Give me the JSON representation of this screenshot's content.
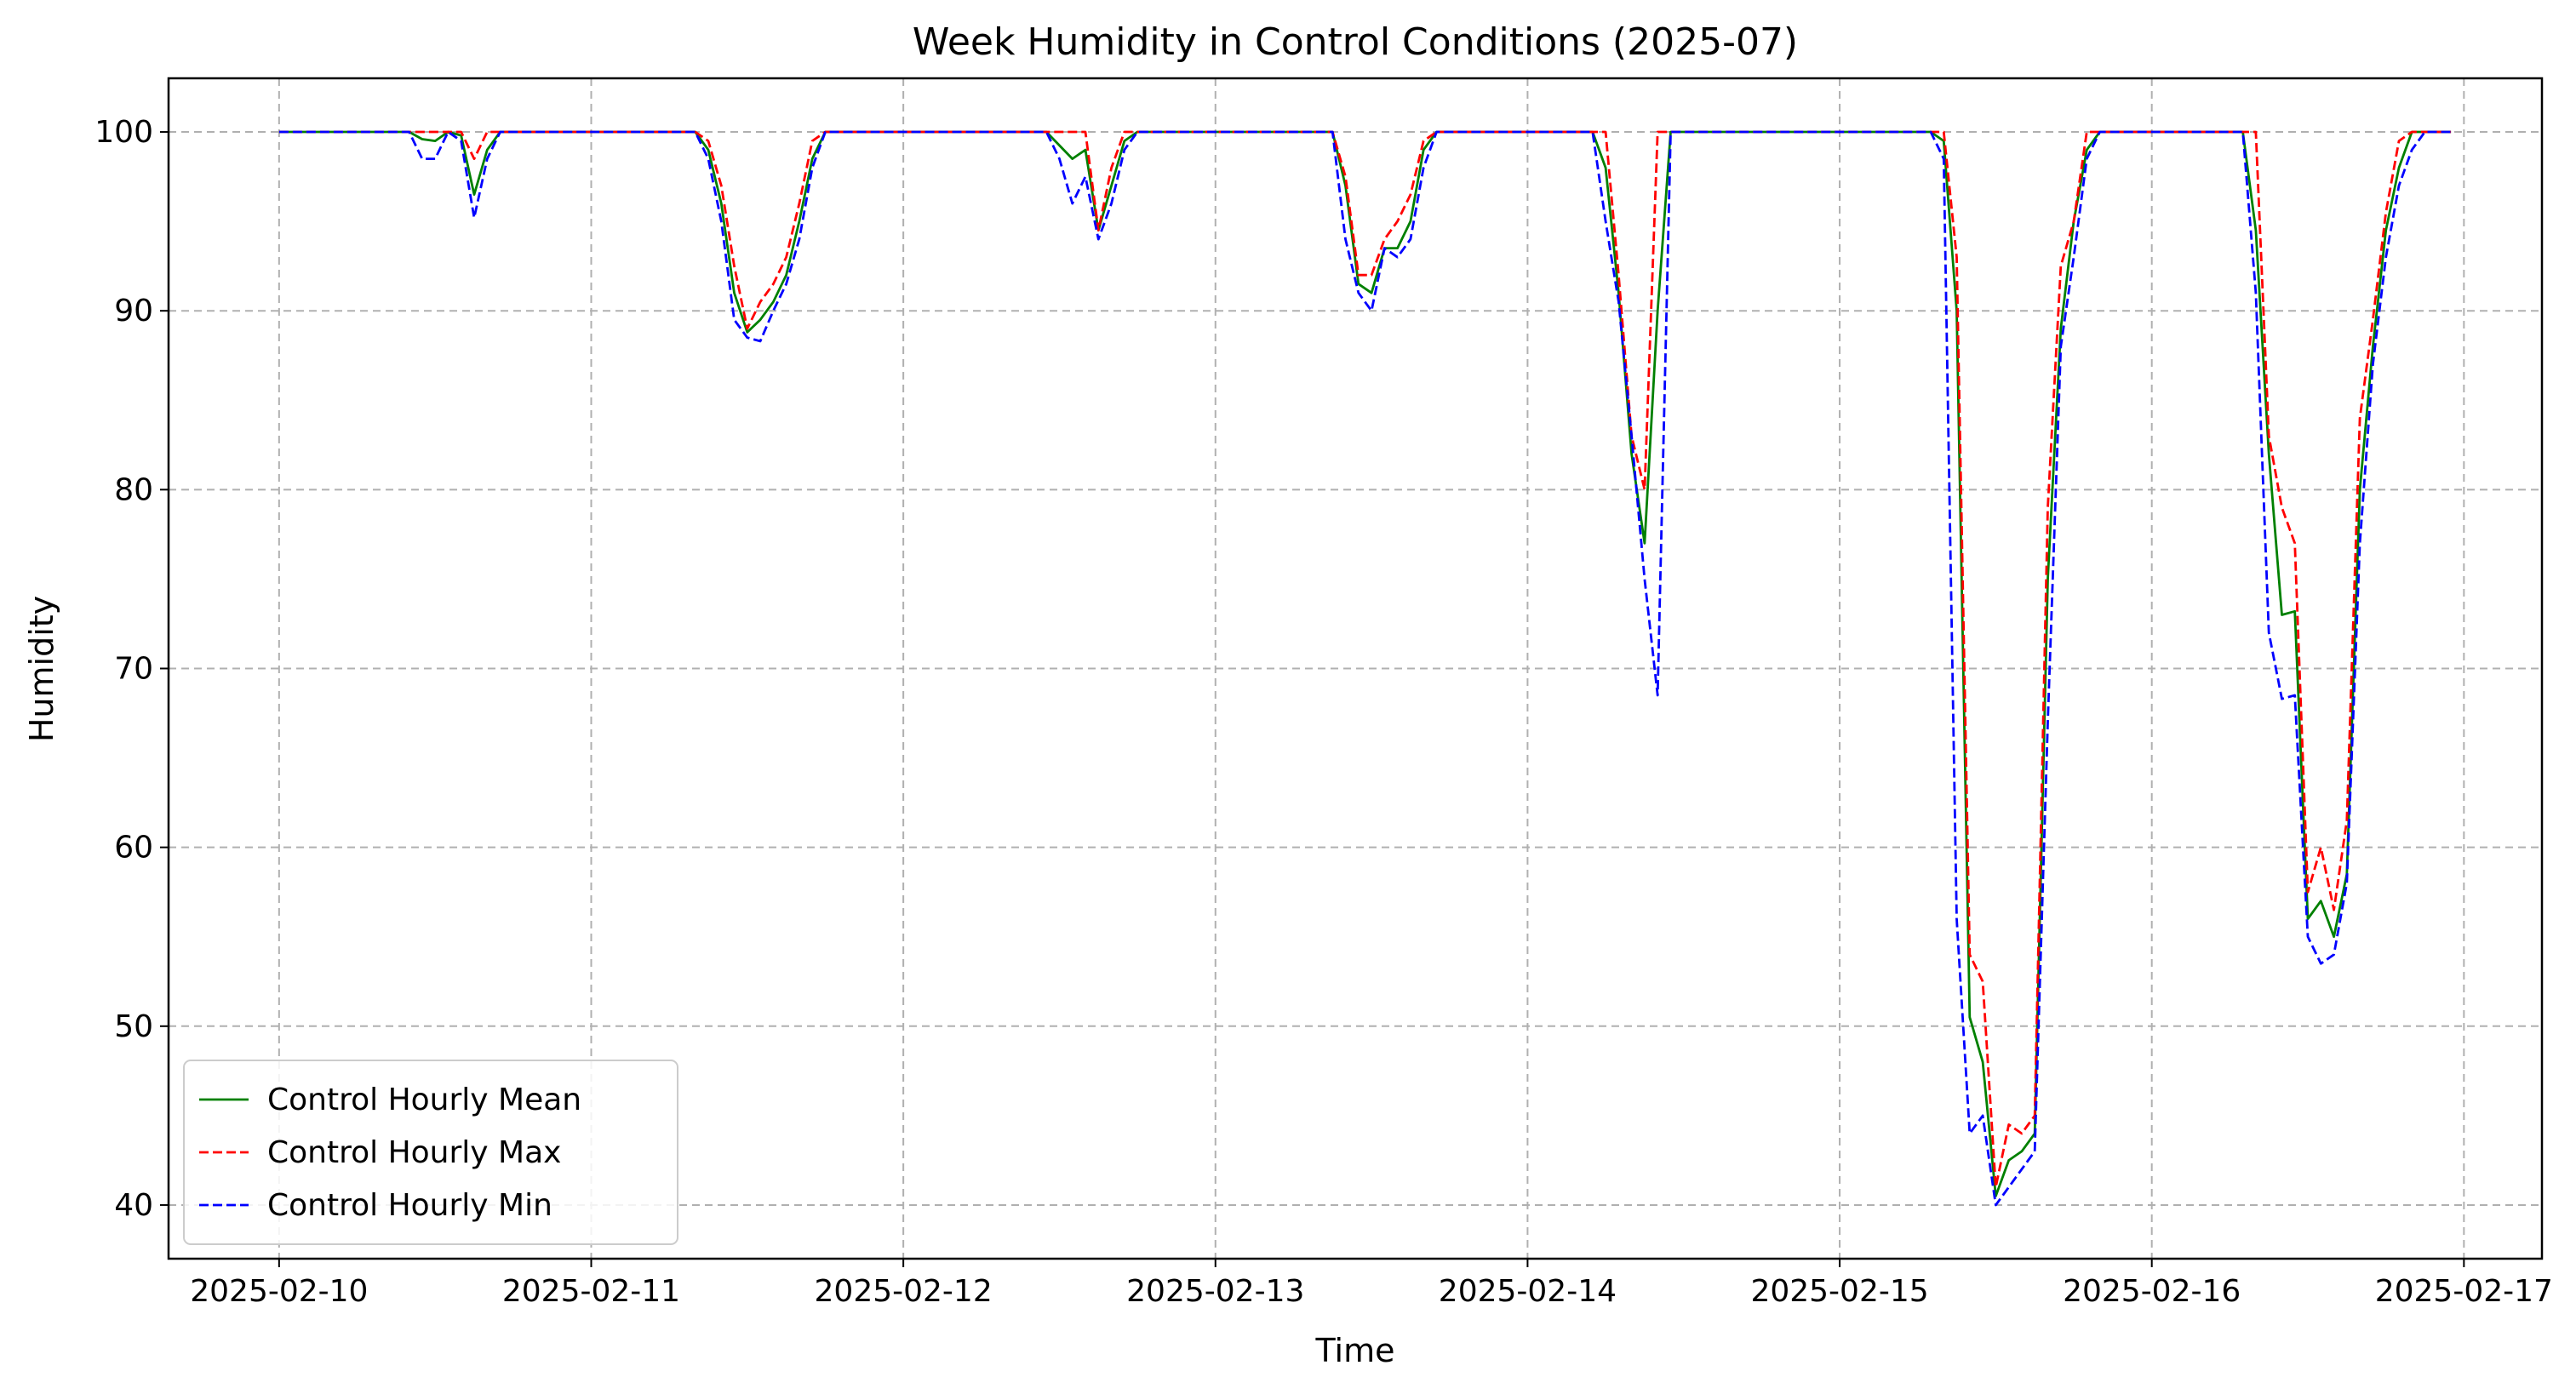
{
  "chart_data": {
    "type": "line",
    "title": "Week Humidity in Control Conditions (2025-07)",
    "xlabel": "Time",
    "ylabel": "Humidity",
    "xlim": [
      "2025-02-09 15:30",
      "2025-02-17 06:00"
    ],
    "ylim": [
      37,
      103
    ],
    "x_ticks": [
      "2025-02-10",
      "2025-02-11",
      "2025-02-12",
      "2025-02-13",
      "2025-02-14",
      "2025-02-15",
      "2025-02-16",
      "2025-02-17"
    ],
    "y_ticks": [
      40,
      50,
      60,
      70,
      80,
      90,
      100
    ],
    "grid": true,
    "legend_position": "lower-left",
    "series": [
      {
        "name": "Control Hourly Mean",
        "color": "#008000",
        "style": "solid",
        "points": [
          [
            "2025-02-10 00:00",
            100
          ],
          [
            "2025-02-10 10:00",
            100
          ],
          [
            "2025-02-10 11:00",
            99.6
          ],
          [
            "2025-02-10 12:00",
            99.5
          ],
          [
            "2025-02-10 13:00",
            100
          ],
          [
            "2025-02-10 14:00",
            99.8
          ],
          [
            "2025-02-10 15:00",
            96.5
          ],
          [
            "2025-02-10 16:00",
            99
          ],
          [
            "2025-02-10 17:00",
            100
          ],
          [
            "2025-02-11 08:00",
            100
          ],
          [
            "2025-02-11 09:00",
            99
          ],
          [
            "2025-02-11 10:00",
            96
          ],
          [
            "2025-02-11 11:00",
            91
          ],
          [
            "2025-02-11 12:00",
            88.8
          ],
          [
            "2025-02-11 13:00",
            89.5
          ],
          [
            "2025-02-11 14:00",
            90.5
          ],
          [
            "2025-02-11 15:00",
            92
          ],
          [
            "2025-02-11 16:00",
            95
          ],
          [
            "2025-02-11 17:00",
            98.5
          ],
          [
            "2025-02-11 18:00",
            100
          ],
          [
            "2025-02-12 11:00",
            100
          ],
          [
            "2025-02-12 13:00",
            98.5
          ],
          [
            "2025-02-12 14:00",
            99
          ],
          [
            "2025-02-12 15:00",
            94.5
          ],
          [
            "2025-02-12 16:00",
            97
          ],
          [
            "2025-02-12 17:00",
            99.5
          ],
          [
            "2025-02-12 18:00",
            100
          ],
          [
            "2025-02-13 09:00",
            100
          ],
          [
            "2025-02-13 10:00",
            97
          ],
          [
            "2025-02-13 11:00",
            91.5
          ],
          [
            "2025-02-13 12:00",
            91
          ],
          [
            "2025-02-13 13:00",
            93.5
          ],
          [
            "2025-02-13 14:00",
            93.5
          ],
          [
            "2025-02-13 15:00",
            95
          ],
          [
            "2025-02-13 16:00",
            99
          ],
          [
            "2025-02-13 17:00",
            100
          ],
          [
            "2025-02-14 05:00",
            100
          ],
          [
            "2025-02-14 06:00",
            98
          ],
          [
            "2025-02-14 07:00",
            91
          ],
          [
            "2025-02-14 08:00",
            82
          ],
          [
            "2025-02-14 09:00",
            77
          ],
          [
            "2025-02-14 10:00",
            90
          ],
          [
            "2025-02-14 11:00",
            100
          ],
          [
            "2025-02-15 07:00",
            100
          ],
          [
            "2025-02-15 08:00",
            99.5
          ],
          [
            "2025-02-15 09:00",
            90
          ],
          [
            "2025-02-15 10:00",
            50.5
          ],
          [
            "2025-02-15 11:00",
            48
          ],
          [
            "2025-02-15 12:00",
            40.5
          ],
          [
            "2025-02-15 13:00",
            42.5
          ],
          [
            "2025-02-15 14:00",
            43
          ],
          [
            "2025-02-15 15:00",
            44
          ],
          [
            "2025-02-15 16:00",
            75
          ],
          [
            "2025-02-15 17:00",
            89
          ],
          [
            "2025-02-15 18:00",
            95
          ],
          [
            "2025-02-15 19:00",
            99
          ],
          [
            "2025-02-15 20:00",
            100
          ],
          [
            "2025-02-16 07:00",
            100
          ],
          [
            "2025-02-16 08:00",
            94.5
          ],
          [
            "2025-02-16 09:00",
            82
          ],
          [
            "2025-02-16 10:00",
            73
          ],
          [
            "2025-02-16 11:00",
            73.2
          ],
          [
            "2025-02-16 12:00",
            56
          ],
          [
            "2025-02-16 13:00",
            57
          ],
          [
            "2025-02-16 14:00",
            55
          ],
          [
            "2025-02-16 15:00",
            58.5
          ],
          [
            "2025-02-16 16:00",
            80
          ],
          [
            "2025-02-16 17:00",
            88
          ],
          [
            "2025-02-16 18:00",
            94.5
          ],
          [
            "2025-02-16 19:00",
            98
          ],
          [
            "2025-02-16 20:00",
            100
          ],
          [
            "2025-02-16 23:00",
            100
          ]
        ]
      },
      {
        "name": "Control Hourly Max",
        "color": "#ff0000",
        "style": "dashed",
        "points": [
          [
            "2025-02-10 00:00",
            100
          ],
          [
            "2025-02-10 14:00",
            100
          ],
          [
            "2025-02-10 15:00",
            98.5
          ],
          [
            "2025-02-10 16:00",
            100
          ],
          [
            "2025-02-11 08:00",
            100
          ],
          [
            "2025-02-11 09:00",
            99.5
          ],
          [
            "2025-02-11 10:00",
            97
          ],
          [
            "2025-02-11 11:00",
            92.5
          ],
          [
            "2025-02-11 12:00",
            89
          ],
          [
            "2025-02-11 13:00",
            90.5
          ],
          [
            "2025-02-11 14:00",
            91.5
          ],
          [
            "2025-02-11 15:00",
            93
          ],
          [
            "2025-02-11 16:00",
            96
          ],
          [
            "2025-02-11 17:00",
            99.5
          ],
          [
            "2025-02-11 18:00",
            100
          ],
          [
            "2025-02-12 14:00",
            100
          ],
          [
            "2025-02-12 15:00",
            94.5
          ],
          [
            "2025-02-12 16:00",
            98
          ],
          [
            "2025-02-12 17:00",
            100
          ],
          [
            "2025-02-13 09:00",
            100
          ],
          [
            "2025-02-13 10:00",
            97.5
          ],
          [
            "2025-02-13 11:00",
            92
          ],
          [
            "2025-02-13 12:00",
            92
          ],
          [
            "2025-02-13 13:00",
            94
          ],
          [
            "2025-02-13 14:00",
            95
          ],
          [
            "2025-02-13 15:00",
            96.5
          ],
          [
            "2025-02-13 16:00",
            99.5
          ],
          [
            "2025-02-13 17:00",
            100
          ],
          [
            "2025-02-14 06:00",
            100
          ],
          [
            "2025-02-14 07:00",
            92
          ],
          [
            "2025-02-14 08:00",
            83
          ],
          [
            "2025-02-14 09:00",
            80
          ],
          [
            "2025-02-14 10:00",
            100
          ],
          [
            "2025-02-15 08:00",
            100
          ],
          [
            "2025-02-15 09:00",
            93
          ],
          [
            "2025-02-15 10:00",
            54
          ],
          [
            "2025-02-15 11:00",
            52.5
          ],
          [
            "2025-02-15 12:00",
            41
          ],
          [
            "2025-02-15 13:00",
            44.5
          ],
          [
            "2025-02-15 14:00",
            44
          ],
          [
            "2025-02-15 15:00",
            45
          ],
          [
            "2025-02-15 16:00",
            79
          ],
          [
            "2025-02-15 17:00",
            92.5
          ],
          [
            "2025-02-15 18:00",
            95
          ],
          [
            "2025-02-15 19:00",
            100
          ],
          [
            "2025-02-16 08:00",
            100
          ],
          [
            "2025-02-16 09:00",
            83
          ],
          [
            "2025-02-16 10:00",
            79
          ],
          [
            "2025-02-16 11:00",
            77
          ],
          [
            "2025-02-16 12:00",
            57.5
          ],
          [
            "2025-02-16 13:00",
            60
          ],
          [
            "2025-02-16 14:00",
            56.5
          ],
          [
            "2025-02-16 15:00",
            61.5
          ],
          [
            "2025-02-16 16:00",
            84
          ],
          [
            "2025-02-16 17:00",
            89.5
          ],
          [
            "2025-02-16 18:00",
            95.5
          ],
          [
            "2025-02-16 19:00",
            99.5
          ],
          [
            "2025-02-16 20:00",
            100
          ],
          [
            "2025-02-16 23:00",
            100
          ]
        ]
      },
      {
        "name": "Control Hourly Min",
        "color": "#0000ff",
        "style": "dashed",
        "points": [
          [
            "2025-02-10 00:00",
            100
          ],
          [
            "2025-02-10 10:00",
            100
          ],
          [
            "2025-02-10 11:00",
            98.5
          ],
          [
            "2025-02-10 12:00",
            98.5
          ],
          [
            "2025-02-10 13:00",
            100
          ],
          [
            "2025-02-10 14:00",
            99.5
          ],
          [
            "2025-02-10 15:00",
            95.2
          ],
          [
            "2025-02-10 16:00",
            98.5
          ],
          [
            "2025-02-10 17:00",
            100
          ],
          [
            "2025-02-11 08:00",
            100
          ],
          [
            "2025-02-11 09:00",
            98.5
          ],
          [
            "2025-02-11 10:00",
            95
          ],
          [
            "2025-02-11 11:00",
            89.5
          ],
          [
            "2025-02-11 12:00",
            88.5
          ],
          [
            "2025-02-11 13:00",
            88.3
          ],
          [
            "2025-02-11 14:00",
            90
          ],
          [
            "2025-02-11 15:00",
            91.5
          ],
          [
            "2025-02-11 16:00",
            94
          ],
          [
            "2025-02-11 17:00",
            98
          ],
          [
            "2025-02-11 18:00",
            100
          ],
          [
            "2025-02-12 11:00",
            100
          ],
          [
            "2025-02-12 12:00",
            98.5
          ],
          [
            "2025-02-12 13:00",
            96
          ],
          [
            "2025-02-12 14:00",
            97.5
          ],
          [
            "2025-02-12 15:00",
            94
          ],
          [
            "2025-02-12 16:00",
            96
          ],
          [
            "2025-02-12 17:00",
            99
          ],
          [
            "2025-02-12 18:00",
            100
          ],
          [
            "2025-02-13 09:00",
            100
          ],
          [
            "2025-02-13 10:00",
            94
          ],
          [
            "2025-02-13 11:00",
            91
          ],
          [
            "2025-02-13 12:00",
            90
          ],
          [
            "2025-02-13 13:00",
            93.5
          ],
          [
            "2025-02-13 14:00",
            93
          ],
          [
            "2025-02-13 15:00",
            94
          ],
          [
            "2025-02-13 16:00",
            98
          ],
          [
            "2025-02-13 17:00",
            100
          ],
          [
            "2025-02-14 05:00",
            100
          ],
          [
            "2025-02-14 06:00",
            95
          ],
          [
            "2025-02-14 07:00",
            90.5
          ],
          [
            "2025-02-14 08:00",
            83
          ],
          [
            "2025-02-14 09:00",
            75
          ],
          [
            "2025-02-14 10:00",
            68.5
          ],
          [
            "2025-02-14 11:00",
            100
          ],
          [
            "2025-02-15 07:00",
            100
          ],
          [
            "2025-02-15 08:00",
            98.5
          ],
          [
            "2025-02-15 09:00",
            56
          ],
          [
            "2025-02-15 10:00",
            44
          ],
          [
            "2025-02-15 11:00",
            45
          ],
          [
            "2025-02-15 12:00",
            40
          ],
          [
            "2025-02-15 13:00",
            41
          ],
          [
            "2025-02-15 14:00",
            42
          ],
          [
            "2025-02-15 15:00",
            43
          ],
          [
            "2025-02-15 16:00",
            67
          ],
          [
            "2025-02-15 17:00",
            88
          ],
          [
            "2025-02-15 18:00",
            93
          ],
          [
            "2025-02-15 19:00",
            98.5
          ],
          [
            "2025-02-15 20:00",
            100
          ],
          [
            "2025-02-16 07:00",
            100
          ],
          [
            "2025-02-16 08:00",
            91
          ],
          [
            "2025-02-16 09:00",
            72
          ],
          [
            "2025-02-16 10:00",
            68.3
          ],
          [
            "2025-02-16 11:00",
            68.5
          ],
          [
            "2025-02-16 12:00",
            55
          ],
          [
            "2025-02-16 13:00",
            53.5
          ],
          [
            "2025-02-16 14:00",
            54
          ],
          [
            "2025-02-16 15:00",
            58
          ],
          [
            "2025-02-16 16:00",
            77
          ],
          [
            "2025-02-16 17:00",
            87
          ],
          [
            "2025-02-16 18:00",
            93
          ],
          [
            "2025-02-16 19:00",
            97
          ],
          [
            "2025-02-16 20:00",
            99
          ],
          [
            "2025-02-16 21:00",
            100
          ],
          [
            "2025-02-16 23:00",
            100
          ]
        ]
      }
    ]
  }
}
